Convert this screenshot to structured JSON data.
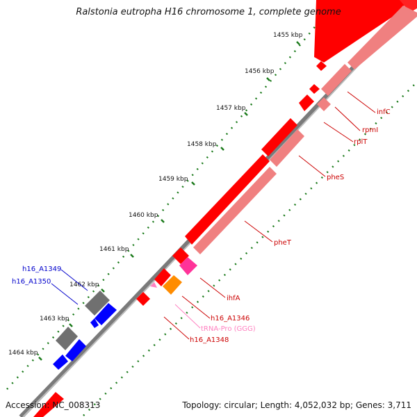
{
  "title": "Ralstonia eutropha H16 chromosome 1, complete genome",
  "accession": "Accession: NC_008313",
  "summary": "Topology: circular; Length: 4,052,032 bp; Genes: 3,711",
  "colors": {
    "forward_cds": "#ff0000",
    "reverse_cds": "#f08080",
    "other_cds_gray": "#707070",
    "other_cds_blue": "#0000ff",
    "trna": "#ff80c0",
    "misc": "#ff8c00",
    "hotpink": "#ff3399",
    "backbone": "#7a7a7a",
    "tick_dots": "#1a7a1a",
    "label_red": "#cc0000",
    "label_blue": "#0000cc",
    "label_pink": "#ff80c0"
  },
  "ticks": [
    {
      "label": "1455 kbp"
    },
    {
      "label": "1456 kbp"
    },
    {
      "label": "1457 kbp"
    },
    {
      "label": "1458 kbp"
    },
    {
      "label": "1459 kbp"
    },
    {
      "label": "1460 kbp"
    },
    {
      "label": "1461 kbp"
    },
    {
      "label": "1462 kbp"
    },
    {
      "label": "1463 kbp"
    },
    {
      "label": "1464 kbp"
    }
  ],
  "gene_labels": [
    {
      "text": "infC",
      "color": "label_red"
    },
    {
      "text": "rpmI",
      "color": "label_red"
    },
    {
      "text": "rplT",
      "color": "label_red"
    },
    {
      "text": "pheS",
      "color": "label_red"
    },
    {
      "text": "pheT",
      "color": "label_red"
    },
    {
      "text": "ihfA",
      "color": "label_red"
    },
    {
      "text": "h16_A1346",
      "color": "label_red"
    },
    {
      "text": "tRNA-Pro (GGG)",
      "color": "label_pink"
    },
    {
      "text": "h16_A1348",
      "color": "label_red"
    },
    {
      "text": "h16_A1349",
      "color": "label_blue"
    },
    {
      "text": "h16_A1350",
      "color": "label_blue"
    }
  ]
}
